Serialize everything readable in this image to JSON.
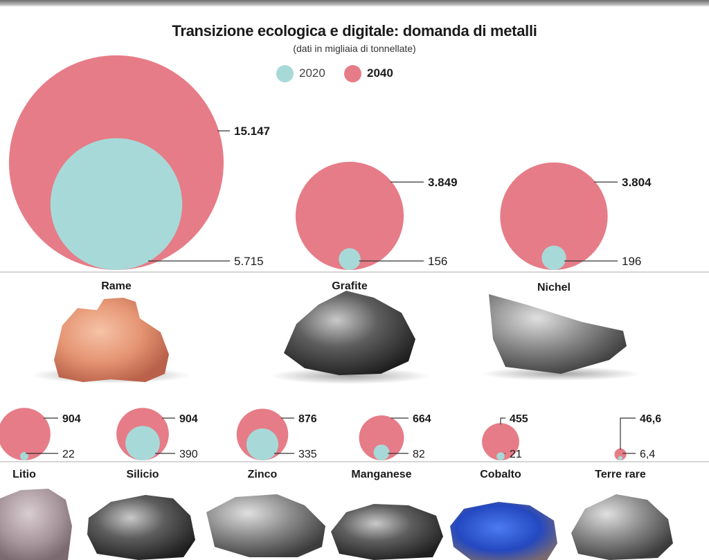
{
  "title": "Transizione ecologica e digitale: domanda di metalli",
  "subtitle": "(dati in migliaia di tonnellate)",
  "legend": {
    "y2020": {
      "label": "2020",
      "color": "#a8d9d9"
    },
    "y2040": {
      "label": "2040",
      "color": "#e67c87"
    }
  },
  "chart_data": {
    "type": "bubble",
    "title": "Transizione ecologica e digitale: domanda di metalli",
    "subtitle": "(dati in migliaia di tonnellate)",
    "unit": "migliaia di tonnellate",
    "series": [
      {
        "name": "2020",
        "color": "#a8d9d9"
      },
      {
        "name": "2040",
        "color": "#e67c87"
      }
    ],
    "categories": [
      "Rame",
      "Grafite",
      "Nichel",
      "Litio",
      "Silicio",
      "Zinco",
      "Manganese",
      "Cobalto",
      "Terre rare"
    ],
    "values_2020": [
      5715,
      156,
      196,
      22,
      390,
      335,
      82,
      21,
      6.4
    ],
    "values_2040": [
      15147,
      3849,
      3804,
      904,
      904,
      876,
      664,
      455,
      46.6
    ],
    "labels_2020": [
      "5.715",
      "156",
      "196",
      "22",
      "390",
      "335",
      "82",
      "21",
      "6,4"
    ],
    "labels_2040": [
      "15.147",
      "3.849",
      "3.804",
      "904",
      "904",
      "876",
      "664",
      "455",
      "46,6"
    ]
  }
}
